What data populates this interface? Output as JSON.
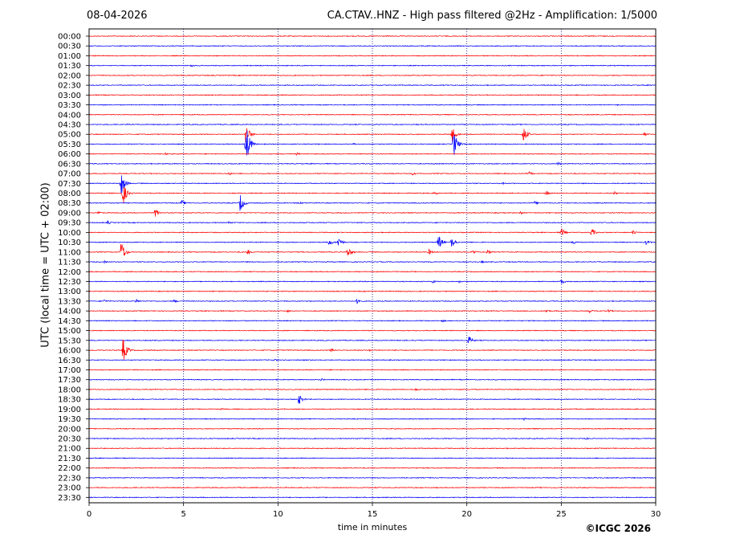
{
  "header": {
    "date": "08-04-2026",
    "title": "CA.CTAV..HNZ - High pass filtered @2Hz - Amplification: 1/5000"
  },
  "footer": {
    "copyright": "©ICGC 2026"
  },
  "colors": {
    "red": "#ff0000",
    "blue": "#0000ff",
    "grid": "#000080",
    "axis": "#000000"
  },
  "chart_data": {
    "type": "line",
    "subtype": "helicorder",
    "title": "CA.CTAV..HNZ - High pass filtered @2Hz - Amplification: 1/5000",
    "xlabel": "time in minutes",
    "ylabel": "UTC (local time = UTC + 02:00)",
    "xlim": [
      0,
      30
    ],
    "xticks": [
      0,
      5,
      10,
      15,
      20,
      25,
      30
    ],
    "grid": "vertical dotted lines at each x tick",
    "traces": [
      "00:00",
      "00:30",
      "01:00",
      "01:30",
      "02:00",
      "02:30",
      "03:00",
      "03:30",
      "04:00",
      "04:30",
      "05:00",
      "05:30",
      "06:00",
      "06:30",
      "07:00",
      "07:30",
      "08:00",
      "08:30",
      "09:00",
      "09:30",
      "10:00",
      "10:30",
      "11:00",
      "11:30",
      "12:00",
      "12:30",
      "13:00",
      "13:30",
      "14:00",
      "14:30",
      "15:00",
      "15:30",
      "16:00",
      "16:30",
      "17:00",
      "17:30",
      "18:00",
      "18:30",
      "19:00",
      "19:30",
      "20:00",
      "20:30",
      "21:00",
      "21:30",
      "22:00",
      "22:30",
      "23:00",
      "23:30"
    ],
    "trace_colors": "alternating red (even rows) / blue (odd rows)",
    "events": [
      {
        "trace": "01:30",
        "minute": 5.4,
        "amplitude": 0.15
      },
      {
        "trace": "03:30",
        "minute": 28.0,
        "amplitude": 0.1
      },
      {
        "trace": "04:30",
        "minute": 2.0,
        "amplitude": 0.1
      },
      {
        "trace": "05:00",
        "minute": 8.3,
        "amplitude": 1.2
      },
      {
        "trace": "05:00",
        "minute": 19.2,
        "amplitude": 0.9
      },
      {
        "trace": "05:00",
        "minute": 23.0,
        "amplitude": 0.9
      },
      {
        "trace": "05:00",
        "minute": 29.4,
        "amplitude": 0.2
      },
      {
        "trace": "05:30",
        "minute": 8.3,
        "amplitude": 2.3
      },
      {
        "trace": "05:30",
        "minute": 19.3,
        "amplitude": 1.5
      },
      {
        "trace": "05:30",
        "minute": 14.0,
        "amplitude": 0.1
      },
      {
        "trace": "06:00",
        "minute": 4.0,
        "amplitude": 0.15
      },
      {
        "trace": "06:00",
        "minute": 11.0,
        "amplitude": 0.15
      },
      {
        "trace": "06:30",
        "minute": 24.8,
        "amplitude": 0.2
      },
      {
        "trace": "07:00",
        "minute": 7.4,
        "amplitude": 0.2
      },
      {
        "trace": "07:00",
        "minute": 17.1,
        "amplitude": 0.2
      },
      {
        "trace": "07:00",
        "minute": 23.3,
        "amplitude": 0.2
      },
      {
        "trace": "07:30",
        "minute": 1.7,
        "amplitude": 1.3
      },
      {
        "trace": "07:30",
        "minute": 21.9,
        "amplitude": 0.15
      },
      {
        "trace": "08:00",
        "minute": 1.8,
        "amplitude": 1.2
      },
      {
        "trace": "08:00",
        "minute": 18.3,
        "amplitude": 0.2
      },
      {
        "trace": "08:00",
        "minute": 24.2,
        "amplitude": 0.25
      },
      {
        "trace": "08:00",
        "minute": 27.8,
        "amplitude": 0.2
      },
      {
        "trace": "08:30",
        "minute": 4.9,
        "amplitude": 0.3
      },
      {
        "trace": "08:30",
        "minute": 8.0,
        "amplitude": 1.0
      },
      {
        "trace": "08:30",
        "minute": 11.1,
        "amplitude": 0.15
      },
      {
        "trace": "08:30",
        "minute": 23.6,
        "amplitude": 0.2
      },
      {
        "trace": "09:00",
        "minute": 3.5,
        "amplitude": 0.5
      },
      {
        "trace": "09:00",
        "minute": 0.5,
        "amplitude": 0.2
      },
      {
        "trace": "09:00",
        "minute": 22.8,
        "amplitude": 0.2
      },
      {
        "trace": "09:30",
        "minute": 1.0,
        "amplitude": 0.2
      },
      {
        "trace": "09:30",
        "minute": 7.4,
        "amplitude": 0.15
      },
      {
        "trace": "10:00",
        "minute": 25.0,
        "amplitude": 0.5
      },
      {
        "trace": "10:00",
        "minute": 26.6,
        "amplitude": 0.5
      },
      {
        "trace": "10:00",
        "minute": 28.8,
        "amplitude": 0.3
      },
      {
        "trace": "10:30",
        "minute": 12.7,
        "amplitude": 0.4
      },
      {
        "trace": "10:30",
        "minute": 13.2,
        "amplitude": 0.6
      },
      {
        "trace": "10:30",
        "minute": 18.5,
        "amplitude": 0.8
      },
      {
        "trace": "10:30",
        "minute": 19.2,
        "amplitude": 0.6
      },
      {
        "trace": "10:30",
        "minute": 25.6,
        "amplitude": 0.3
      },
      {
        "trace": "10:30",
        "minute": 29.5,
        "amplitude": 0.3
      },
      {
        "trace": "11:00",
        "minute": 1.7,
        "amplitude": 1.3
      },
      {
        "trace": "11:00",
        "minute": 8.4,
        "amplitude": 0.3
      },
      {
        "trace": "11:00",
        "minute": 13.7,
        "amplitude": 0.6
      },
      {
        "trace": "11:00",
        "minute": 18.0,
        "amplitude": 0.3
      },
      {
        "trace": "11:00",
        "minute": 20.3,
        "amplitude": 0.3
      },
      {
        "trace": "11:00",
        "minute": 21.1,
        "amplitude": 0.3
      },
      {
        "trace": "11:30",
        "minute": 0.8,
        "amplitude": 0.15
      },
      {
        "trace": "11:30",
        "minute": 20.8,
        "amplitude": 0.15
      },
      {
        "trace": "12:30",
        "minute": 18.2,
        "amplitude": 0.2
      },
      {
        "trace": "12:30",
        "minute": 19.6,
        "amplitude": 0.15
      },
      {
        "trace": "12:30",
        "minute": 25.0,
        "amplitude": 0.3
      },
      {
        "trace": "13:30",
        "minute": 0.8,
        "amplitude": 0.2
      },
      {
        "trace": "13:30",
        "minute": 2.5,
        "amplitude": 0.25
      },
      {
        "trace": "13:30",
        "minute": 4.5,
        "amplitude": 0.2
      },
      {
        "trace": "13:30",
        "minute": 14.2,
        "amplitude": 0.35
      },
      {
        "trace": "14:00",
        "minute": 10.5,
        "amplitude": 0.15
      },
      {
        "trace": "14:00",
        "minute": 24.2,
        "amplitude": 0.2
      },
      {
        "trace": "14:00",
        "minute": 26.5,
        "amplitude": 0.2
      },
      {
        "trace": "14:00",
        "minute": 27.5,
        "amplitude": 0.2
      },
      {
        "trace": "14:30",
        "minute": 18.7,
        "amplitude": 0.15
      },
      {
        "trace": "15:30",
        "minute": 20.1,
        "amplitude": 0.5
      },
      {
        "trace": "16:00",
        "minute": 1.8,
        "amplitude": 1.4
      },
      {
        "trace": "16:00",
        "minute": 12.8,
        "amplitude": 0.2
      },
      {
        "trace": "16:00",
        "minute": 14.8,
        "amplitude": 0.15
      },
      {
        "trace": "16:30",
        "minute": 9.8,
        "amplitude": 0.15
      },
      {
        "trace": "17:30",
        "minute": 12.3,
        "amplitude": 0.15
      },
      {
        "trace": "18:00",
        "minute": 17.3,
        "amplitude": 0.15
      },
      {
        "trace": "18:30",
        "minute": 11.1,
        "amplitude": 0.6
      },
      {
        "trace": "19:00",
        "minute": 7.0,
        "amplitude": 0.1
      },
      {
        "trace": "19:30",
        "minute": 17.2,
        "amplitude": 0.1
      },
      {
        "trace": "19:30",
        "minute": 23.0,
        "amplitude": 0.15
      },
      {
        "trace": "20:30",
        "minute": 26.3,
        "amplitude": 0.15
      }
    ]
  }
}
